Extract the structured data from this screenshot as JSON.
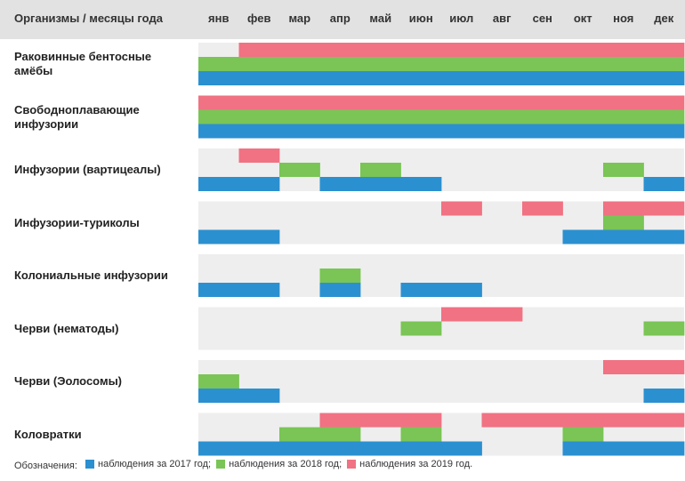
{
  "colors": {
    "2017": "#2b90d0",
    "2018": "#7ac555",
    "2019": "#f07283",
    "cell_bg": "#eeeeee",
    "header_bg": "#e2e2e2"
  },
  "chart_data": {
    "type": "heatmap",
    "title": "",
    "corner_label": "Организмы / месяцы года",
    "months": [
      "янв",
      "фев",
      "мар",
      "апр",
      "май",
      "июн",
      "июл",
      "авг",
      "сен",
      "окт",
      "ноя",
      "дек"
    ],
    "series": [
      {
        "key": "2019",
        "name": "наблюдения за 2019 год."
      },
      {
        "key": "2018",
        "name": "наблюдения за 2018 год;"
      },
      {
        "key": "2017",
        "name": "наблюдения за 2017 год;"
      }
    ],
    "rows": [
      {
        "label": "Раковинные бентосные амёбы",
        "2019": [
          0,
          1,
          1,
          1,
          1,
          1,
          1,
          1,
          1,
          1,
          1,
          1
        ],
        "2018": [
          1,
          1,
          1,
          1,
          1,
          1,
          1,
          1,
          1,
          1,
          1,
          1
        ],
        "2017": [
          1,
          1,
          1,
          1,
          1,
          1,
          1,
          1,
          1,
          1,
          1,
          1
        ]
      },
      {
        "label": "Свободноплавающие инфузории",
        "2019": [
          1,
          1,
          1,
          1,
          1,
          1,
          1,
          1,
          1,
          1,
          1,
          1
        ],
        "2018": [
          1,
          1,
          1,
          1,
          1,
          1,
          1,
          1,
          1,
          1,
          1,
          1
        ],
        "2017": [
          1,
          1,
          1,
          1,
          1,
          1,
          1,
          1,
          1,
          1,
          1,
          1
        ]
      },
      {
        "label": "Инфузории (вартицеалы)",
        "2019": [
          0,
          1,
          0,
          0,
          0,
          0,
          0,
          0,
          0,
          0,
          0,
          0
        ],
        "2018": [
          0,
          0,
          1,
          0,
          1,
          0,
          0,
          0,
          0,
          0,
          1,
          0
        ],
        "2017": [
          1,
          1,
          0,
          1,
          1,
          1,
          0,
          0,
          0,
          0,
          0,
          1
        ]
      },
      {
        "label": "Инфузории-туриколы",
        "2019": [
          0,
          0,
          0,
          0,
          0,
          0,
          1,
          0,
          1,
          0,
          1,
          1
        ],
        "2018": [
          0,
          0,
          0,
          0,
          0,
          0,
          0,
          0,
          0,
          0,
          1,
          0
        ],
        "2017": [
          1,
          1,
          0,
          0,
          0,
          0,
          0,
          0,
          0,
          1,
          1,
          1
        ]
      },
      {
        "label": "Колониальные инфузории",
        "2019": [
          0,
          0,
          0,
          0,
          0,
          0,
          0,
          0,
          0,
          0,
          0,
          0
        ],
        "2018": [
          0,
          0,
          0,
          1,
          0,
          0,
          0,
          0,
          0,
          0,
          0,
          0
        ],
        "2017": [
          1,
          1,
          0,
          1,
          0,
          1,
          1,
          0,
          0,
          0,
          0,
          0
        ]
      },
      {
        "label": "Черви (нематоды)",
        "2019": [
          0,
          0,
          0,
          0,
          0,
          0,
          1,
          1,
          0,
          0,
          0,
          0
        ],
        "2018": [
          0,
          0,
          0,
          0,
          0,
          1,
          0,
          0,
          0,
          0,
          0,
          1
        ],
        "2017": [
          0,
          0,
          0,
          0,
          0,
          0,
          0,
          0,
          0,
          0,
          0,
          0
        ]
      },
      {
        "label": "Черви (Эолосомы)",
        "2019": [
          0,
          0,
          0,
          0,
          0,
          0,
          0,
          0,
          0,
          0,
          1,
          1
        ],
        "2018": [
          1,
          0,
          0,
          0,
          0,
          0,
          0,
          0,
          0,
          0,
          0,
          0
        ],
        "2017": [
          1,
          1,
          0,
          0,
          0,
          0,
          0,
          0,
          0,
          0,
          0,
          1
        ]
      },
      {
        "label": "Коловратки",
        "2019": [
          0,
          0,
          0,
          1,
          1,
          1,
          0,
          1,
          1,
          1,
          1,
          1
        ],
        "2018": [
          0,
          0,
          1,
          1,
          0,
          1,
          0,
          0,
          0,
          1,
          0,
          0
        ],
        "2017": [
          1,
          1,
          1,
          1,
          1,
          1,
          1,
          0,
          0,
          1,
          1,
          1
        ]
      }
    ]
  },
  "legend": {
    "prefix": "Обозначения:"
  }
}
